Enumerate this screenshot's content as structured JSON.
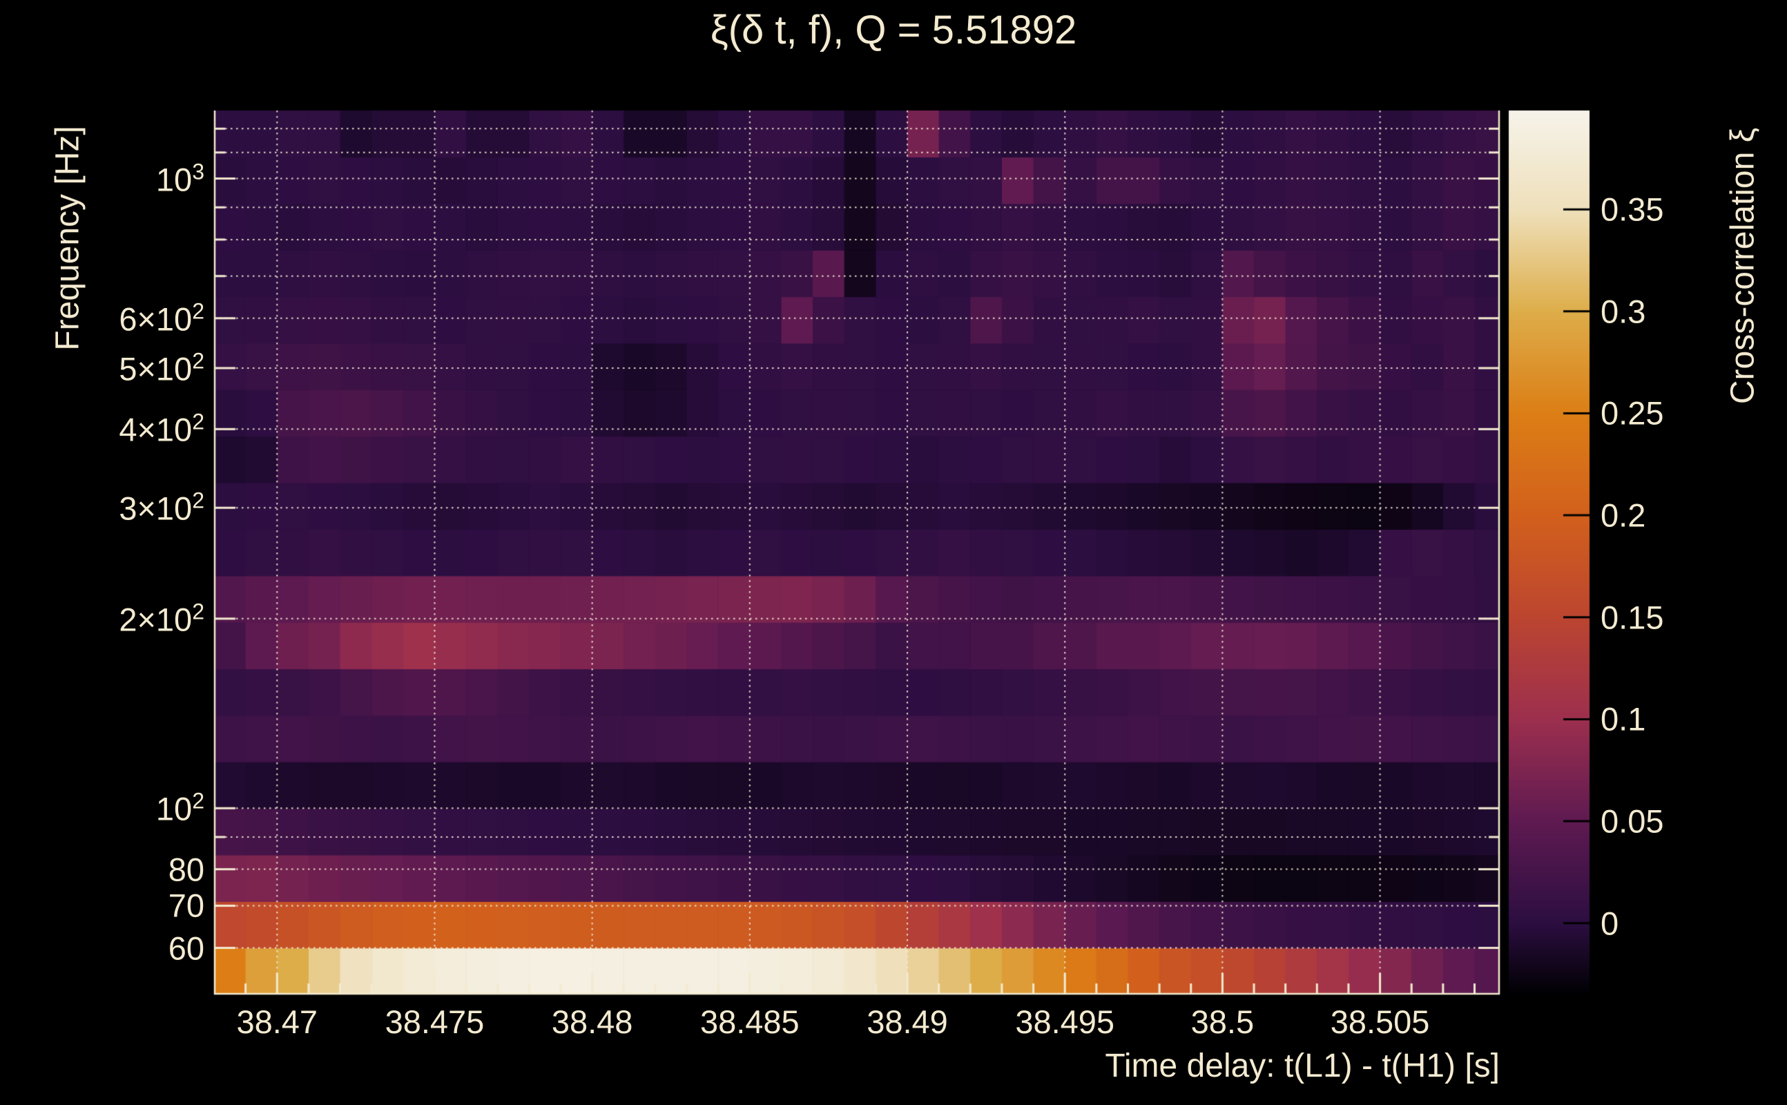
{
  "title": "ξ(δ t, f), Q = 5.51892",
  "axes": {
    "x_label": "Time delay: t(L1) - t(H1) [s]",
    "y_label": "Frequency [Hz]",
    "colorbar_label": "Cross-correlation ξ"
  },
  "palette": {
    "background": "#000000",
    "text": "#f3ead0",
    "grid": "#f4ecd6",
    "frame": "#f3ead0",
    "stops": [
      {
        "u": 0.0,
        "color": "#000002"
      },
      {
        "u": 0.081,
        "color": "#2c0e41"
      },
      {
        "u": 0.196,
        "color": "#5e1a51"
      },
      {
        "u": 0.311,
        "color": "#9c2f4e"
      },
      {
        "u": 0.427,
        "color": "#bc4530"
      },
      {
        "u": 0.542,
        "color": "#d2601c"
      },
      {
        "u": 0.657,
        "color": "#dc7e15"
      },
      {
        "u": 0.773,
        "color": "#ddad4a"
      },
      {
        "u": 0.888,
        "color": "#efe0bb"
      },
      {
        "u": 1.0,
        "color": "#f6f3ea"
      }
    ]
  },
  "chart_data": {
    "type": "heatmap",
    "title": "ξ(δ t, f), Q = 5.51892",
    "xlabel": "Time delay: t(L1) - t(H1) [s]",
    "ylabel": "Frequency [Hz]",
    "zlabel": "Cross-correlation ξ",
    "x": {
      "min": 38.468,
      "max": 38.5088,
      "bin_width": 0.001,
      "major_ticks": [
        38.47,
        38.475,
        38.48,
        38.485,
        38.49,
        38.495,
        38.5,
        38.505
      ],
      "major_tick_labels": [
        "38.47",
        "38.475",
        "38.48",
        "38.485",
        "38.49",
        "38.495",
        "38.5",
        "38.505"
      ],
      "minor_tick_step": 0.001
    },
    "y": {
      "scale": "log",
      "min": 50.6,
      "max": 1282.5,
      "labeled_ticks": [
        {
          "v": 1000,
          "base": "10",
          "sup": "3"
        },
        {
          "v": 600,
          "base": "6×10",
          "sup": "2"
        },
        {
          "v": 500,
          "base": "5×10",
          "sup": "2"
        },
        {
          "v": 400,
          "base": "4×10",
          "sup": "2"
        },
        {
          "v": 300,
          "base": "3×10",
          "sup": "2"
        },
        {
          "v": 200,
          "base": "2×10",
          "sup": "2"
        },
        {
          "v": 100,
          "base": "10",
          "sup": "2"
        },
        {
          "v": 80,
          "base": "80",
          "sup": ""
        },
        {
          "v": 70,
          "base": "70",
          "sup": ""
        },
        {
          "v": 60,
          "base": "60",
          "sup": ""
        }
      ],
      "minor_ticks": [
        90,
        700,
        800,
        900,
        1100,
        1200
      ],
      "grid_freqs": [
        60,
        70,
        80,
        90,
        100,
        200,
        300,
        400,
        500,
        600,
        700,
        800,
        900,
        1000,
        1100,
        1200
      ],
      "row_edges": [
        50.6,
        59.99,
        71.11,
        84.3,
        99.93,
        118.47,
        140.44,
        166.48,
        197.35,
        233.96,
        277.35,
        328.78,
        389.76,
        462.05,
        547.75,
        649.35,
        769.78,
        912.55,
        1081.8,
        1282.5
      ]
    },
    "z": {
      "min": -0.035,
      "max": 0.3985,
      "ticks": [
        0,
        0.05,
        0.1,
        0.15,
        0.2,
        0.25,
        0.3,
        0.35
      ],
      "tick_labels": [
        "0",
        "0.05",
        "0.1",
        "0.15",
        "0.2",
        "0.25",
        "0.3",
        "0.35"
      ]
    },
    "values": [
      [
        0.25,
        0.285,
        0.3,
        0.33,
        0.355,
        0.37,
        0.378,
        0.383,
        0.386,
        0.388,
        0.39,
        0.39,
        0.389,
        0.389,
        0.388,
        0.389,
        0.388,
        0.387,
        0.384,
        0.378,
        0.368,
        0.35,
        0.335,
        0.318,
        0.3,
        0.282,
        0.262,
        0.243,
        0.222,
        0.2,
        0.18,
        0.168,
        0.155,
        0.142,
        0.128,
        0.112,
        0.096,
        0.08,
        0.064,
        0.05,
        0.04
      ],
      [
        0.156,
        0.162,
        0.172,
        0.182,
        0.19,
        0.196,
        0.2,
        0.201,
        0.2,
        0.198,
        0.196,
        0.194,
        0.192,
        0.191,
        0.19,
        0.191,
        0.19,
        0.188,
        0.184,
        0.178,
        0.168,
        0.152,
        0.136,
        0.12,
        0.104,
        0.088,
        0.072,
        0.058,
        0.046,
        0.036,
        0.028,
        0.022,
        0.017,
        0.013,
        0.01,
        0.008,
        0.006,
        0.005,
        0.004,
        0.002,
        0.0
      ],
      [
        0.073,
        0.075,
        0.068,
        0.063,
        0.059,
        0.056,
        0.053,
        0.049,
        0.045,
        0.041,
        0.037,
        0.033,
        0.029,
        0.025,
        0.022,
        0.019,
        0.016,
        0.013,
        0.01,
        0.008,
        0.006,
        0.004,
        0.002,
        0.0,
        -0.003,
        -0.006,
        -0.009,
        -0.012,
        -0.015,
        -0.018,
        -0.021,
        -0.023,
        -0.025,
        -0.026,
        -0.026,
        -0.025,
        -0.025,
        -0.024,
        -0.023,
        -0.022,
        -0.02
      ],
      [
        0.026,
        0.024,
        0.018,
        0.014,
        0.011,
        0.009,
        0.007,
        0.005,
        0.004,
        0.003,
        0.002,
        0.001,
        0.0,
        -0.001,
        -0.002,
        -0.003,
        -0.004,
        -0.005,
        -0.006,
        -0.007,
        -0.008,
        -0.009,
        -0.01,
        -0.011,
        -0.012,
        -0.013,
        -0.013,
        -0.014,
        -0.014,
        -0.015,
        -0.015,
        -0.016,
        -0.016,
        -0.016,
        -0.015,
        -0.015,
        -0.014,
        -0.014,
        -0.013,
        -0.012,
        -0.01
      ],
      [
        -0.008,
        -0.01,
        -0.012,
        -0.013,
        -0.013,
        -0.012,
        -0.011,
        -0.012,
        -0.013,
        -0.014,
        -0.014,
        -0.012,
        -0.011,
        -0.012,
        -0.014,
        -0.015,
        -0.015,
        -0.014,
        -0.012,
        -0.011,
        -0.012,
        -0.013,
        -0.014,
        -0.015,
        -0.014,
        -0.012,
        -0.011,
        -0.01,
        -0.012,
        -0.013,
        -0.014,
        -0.012,
        -0.011,
        -0.01,
        -0.012,
        -0.014,
        -0.015,
        -0.014,
        -0.012,
        -0.011,
        -0.012
      ],
      [
        0.017,
        0.019,
        0.022,
        0.02,
        0.017,
        0.015,
        0.017,
        0.021,
        0.023,
        0.021,
        0.019,
        0.017,
        0.015,
        0.017,
        0.019,
        0.021,
        0.019,
        0.017,
        0.015,
        0.013,
        0.015,
        0.017,
        0.019,
        0.017,
        0.015,
        0.013,
        0.015,
        0.017,
        0.019,
        0.021,
        0.019,
        0.017,
        0.015,
        0.017,
        0.019,
        0.021,
        0.023,
        0.021,
        0.019,
        0.017,
        0.015
      ],
      [
        0.007,
        0.009,
        0.012,
        0.017,
        0.025,
        0.032,
        0.037,
        0.035,
        0.029,
        0.023,
        0.017,
        0.013,
        0.011,
        0.009,
        0.007,
        0.005,
        0.005,
        0.007,
        0.009,
        0.007,
        0.005,
        0.003,
        0.002,
        0.003,
        0.005,
        0.007,
        0.009,
        0.011,
        0.013,
        0.017,
        0.021,
        0.023,
        0.025,
        0.027,
        0.025,
        0.021,
        0.017,
        0.013,
        0.009,
        0.007,
        0.005
      ],
      [
        0.024,
        0.049,
        0.063,
        0.069,
        0.089,
        0.097,
        0.104,
        0.097,
        0.092,
        0.085,
        0.082,
        0.077,
        0.074,
        0.067,
        0.062,
        0.057,
        0.051,
        0.047,
        0.039,
        0.032,
        0.025,
        0.015,
        0.021,
        0.021,
        0.027,
        0.027,
        0.035,
        0.035,
        0.045,
        0.045,
        0.049,
        0.055,
        0.055,
        0.057,
        0.055,
        0.049,
        0.043,
        0.031,
        0.024,
        0.019,
        0.015
      ],
      [
        0.038,
        0.045,
        0.049,
        0.055,
        0.059,
        0.063,
        0.065,
        0.065,
        0.064,
        0.063,
        0.063,
        0.064,
        0.065,
        0.067,
        0.069,
        0.071,
        0.073,
        0.075,
        0.077,
        0.072,
        0.062,
        0.042,
        0.032,
        0.026,
        0.022,
        0.02,
        0.022,
        0.026,
        0.028,
        0.03,
        0.029,
        0.026,
        0.022,
        0.02,
        0.018,
        0.016,
        0.014,
        0.012,
        0.01,
        0.008,
        0.006
      ],
      [
        0.002,
        0.004,
        0.006,
        0.008,
        0.006,
        0.004,
        0.002,
        0.0,
        0.002,
        0.004,
        0.006,
        0.004,
        0.002,
        0.0,
        -0.002,
        0.0,
        0.002,
        0.004,
        0.002,
        0.0,
        0.002,
        0.004,
        0.006,
        0.008,
        0.006,
        0.004,
        0.002,
        0.0,
        -0.002,
        -0.004,
        -0.006,
        -0.008,
        -0.01,
        -0.012,
        -0.014,
        -0.012,
        -0.008,
        0.01,
        0.012,
        0.008,
        0.004
      ],
      [
        0.0,
        0.002,
        0.004,
        0.002,
        0.0,
        -0.002,
        -0.004,
        -0.006,
        -0.004,
        -0.002,
        0.0,
        -0.002,
        -0.004,
        -0.006,
        -0.008,
        -0.006,
        -0.004,
        -0.002,
        -0.004,
        -0.006,
        -0.008,
        -0.006,
        -0.004,
        -0.002,
        -0.004,
        -0.006,
        -0.008,
        -0.01,
        -0.012,
        -0.014,
        -0.016,
        -0.018,
        -0.02,
        -0.022,
        -0.024,
        -0.025,
        -0.026,
        -0.024,
        -0.018,
        -0.008,
        -0.002
      ],
      [
        -0.01,
        -0.008,
        0.018,
        0.022,
        0.02,
        0.016,
        0.012,
        0.008,
        0.006,
        0.004,
        0.006,
        0.008,
        0.006,
        0.004,
        0.002,
        0.0,
        0.002,
        0.004,
        0.006,
        0.004,
        0.002,
        0.0,
        -0.002,
        0.0,
        0.002,
        0.004,
        0.006,
        0.004,
        0.002,
        0.0,
        -0.004,
        0.0,
        0.008,
        0.012,
        0.008,
        0.006,
        0.008,
        0.01,
        0.012,
        0.01,
        0.006
      ],
      [
        -0.002,
        0.002,
        0.026,
        0.03,
        0.032,
        0.028,
        0.022,
        0.014,
        0.008,
        0.004,
        0.002,
        0.0,
        -0.008,
        -0.012,
        -0.01,
        -0.004,
        0.0,
        0.002,
        0.004,
        0.006,
        0.004,
        0.002,
        0.004,
        0.006,
        0.004,
        0.002,
        0.004,
        0.006,
        0.008,
        0.006,
        0.004,
        0.008,
        0.028,
        0.032,
        0.022,
        0.013,
        0.009,
        0.005,
        0.009,
        0.013,
        0.005
      ],
      [
        0.008,
        0.012,
        0.018,
        0.02,
        0.016,
        0.014,
        0.012,
        0.008,
        0.006,
        0.004,
        0.002,
        0.0,
        -0.01,
        -0.014,
        -0.012,
        -0.004,
        0.002,
        0.006,
        0.008,
        0.006,
        0.004,
        0.002,
        0.004,
        0.006,
        0.008,
        0.006,
        0.004,
        0.006,
        0.004,
        0.002,
        0.0,
        0.006,
        0.047,
        0.056,
        0.038,
        0.024,
        0.02,
        0.01,
        0.006,
        0.014,
        0.006
      ],
      [
        0.004,
        0.006,
        0.008,
        0.01,
        0.008,
        0.006,
        0.004,
        0.002,
        0.004,
        0.006,
        0.004,
        0.002,
        0.0,
        -0.002,
        0.0,
        0.002,
        0.004,
        0.008,
        0.05,
        0.016,
        0.004,
        0.002,
        0.0,
        0.004,
        0.035,
        0.016,
        0.006,
        0.004,
        0.006,
        0.008,
        0.004,
        0.006,
        0.06,
        0.069,
        0.04,
        0.026,
        0.016,
        0.006,
        0.01,
        0.014,
        0.006
      ],
      [
        0.0,
        0.001,
        0.003,
        0.005,
        0.003,
        0.001,
        -0.001,
        0.001,
        0.003,
        0.005,
        0.007,
        0.005,
        0.003,
        0.001,
        0.003,
        0.005,
        0.007,
        0.009,
        0.013,
        0.045,
        -0.02,
        -0.001,
        0.003,
        0.001,
        0.009,
        0.013,
        0.009,
        0.005,
        0.001,
        -0.001,
        -0.003,
        0.003,
        0.038,
        0.024,
        0.016,
        0.011,
        0.007,
        0.003,
        0.013,
        0.007,
        0.001
      ],
      [
        0.002,
        0.0,
        -0.002,
        0.0,
        0.002,
        0.004,
        0.002,
        0.0,
        -0.002,
        0.0,
        0.002,
        0.0,
        -0.002,
        -0.004,
        -0.002,
        0.0,
        0.002,
        0.005,
        0.001,
        -0.003,
        -0.02,
        -0.007,
        -0.001,
        0.002,
        0.005,
        0.009,
        0.005,
        0.001,
        -0.001,
        -0.003,
        -0.005,
        -0.001,
        0.003,
        0.007,
        0.011,
        0.009,
        0.005,
        0.001,
        0.007,
        0.013,
        0.008
      ],
      [
        -0.002,
        0.0,
        0.002,
        0.004,
        0.002,
        0.0,
        -0.002,
        -0.004,
        -0.002,
        0.0,
        0.002,
        0.004,
        0.002,
        0.0,
        -0.002,
        0.0,
        0.002,
        0.004,
        0.0,
        -0.004,
        -0.02,
        -0.005,
        0.0,
        0.004,
        0.007,
        0.052,
        0.024,
        0.008,
        0.024,
        0.024,
        0.008,
        0.004,
        0.002,
        0.005,
        0.009,
        0.007,
        0.003,
        0.001,
        0.007,
        0.014,
        0.01
      ],
      [
        0.0,
        0.0,
        0.004,
        0.004,
        -0.01,
        -0.006,
        -0.006,
        0.005,
        -0.006,
        -0.006,
        0.004,
        0.008,
        0.0,
        -0.014,
        -0.014,
        -0.006,
        0.0,
        0.008,
        0.008,
        0.0,
        -0.018,
        0.0,
        0.069,
        0.022,
        0.0,
        -0.005,
        0.0,
        0.003,
        0.008,
        0.003,
        0.0,
        -0.005,
        0.0,
        0.003,
        0.008,
        0.006,
        0.001,
        -0.003,
        0.003,
        0.008,
        0.012
      ]
    ]
  }
}
